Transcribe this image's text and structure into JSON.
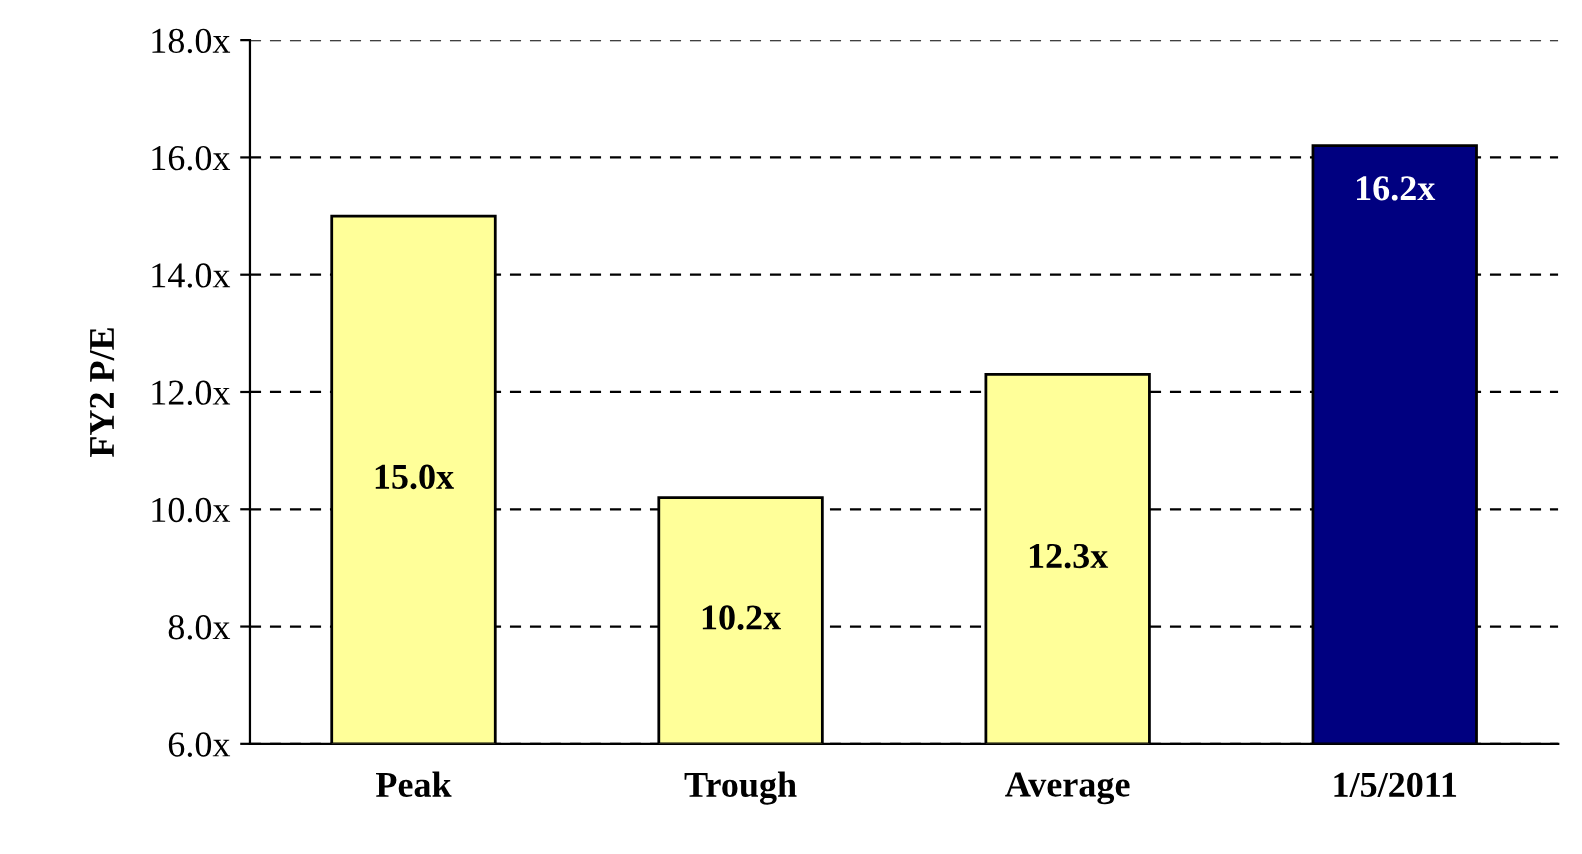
{
  "chart_data": {
    "type": "bar",
    "ylabel": "FY2 P/E",
    "categories": [
      "Peak",
      "Trough",
      "Average",
      "1/5/2011"
    ],
    "values": [
      15.0,
      10.2,
      12.3,
      16.2
    ],
    "colors": [
      "#ffff99",
      "#ffff99",
      "#ffff99",
      "#000080"
    ],
    "value_labels": [
      "15.0x",
      "10.2x",
      "12.3x",
      "16.2x"
    ],
    "ylim": [
      6,
      18
    ],
    "yticks": [
      {
        "value": 6,
        "label": "6.0x"
      },
      {
        "value": 8,
        "label": "8.0x"
      },
      {
        "value": 10,
        "label": "10.0x"
      },
      {
        "value": 12,
        "label": "12.0x"
      },
      {
        "value": 14,
        "label": "14.0x"
      },
      {
        "value": 16,
        "label": "16.0x"
      },
      {
        "value": 18,
        "label": "18.0x"
      }
    ],
    "grid": "y",
    "line_style": "dashed",
    "legend": false
  }
}
